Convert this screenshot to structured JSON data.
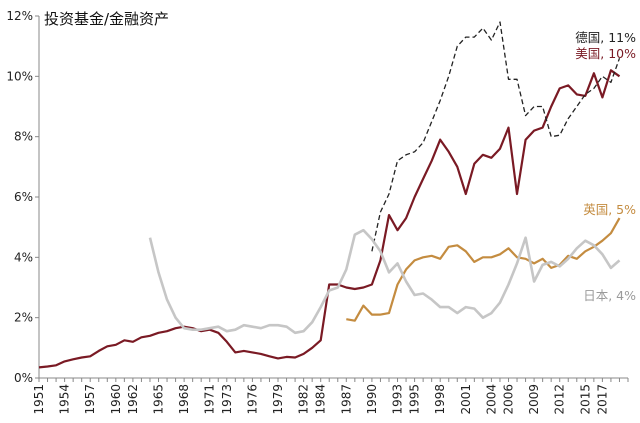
{
  "chart_data": {
    "type": "line",
    "title": "投资基金/金融资产",
    "xlabel": "",
    "ylabel": "",
    "xlim": [
      1951,
      2020
    ],
    "ylim": [
      0,
      12
    ],
    "y_ticks": [
      0,
      2,
      4,
      6,
      8,
      10,
      12
    ],
    "y_tick_labels": [
      "0%",
      "2%",
      "4%",
      "6%",
      "8%",
      "10%",
      "12%"
    ],
    "x_tick_labels": [
      "1951",
      "1954",
      "1957",
      "1960",
      "1962",
      "1965",
      "1968",
      "1971",
      "1973",
      "1976",
      "1979",
      "1982",
      "1984",
      "1987",
      "1990",
      "1993",
      "1995",
      "1998",
      "2001",
      "2004",
      "2006",
      "2009",
      "2012",
      "2015",
      "2017"
    ],
    "x_ticks": [
      1951,
      1954,
      1957,
      1960,
      1962,
      1965,
      1968,
      1971,
      1973,
      1976,
      1979,
      1982,
      1984,
      1987,
      1990,
      1993,
      1995,
      1998,
      2001,
      2004,
      2006,
      2009,
      2012,
      2015,
      2017
    ],
    "grid": false,
    "legend": "inline labels at line ends",
    "series": [
      {
        "name": "美国, 10%",
        "color": "#7a1a24",
        "style": "solid",
        "x": [
          1951,
          1952,
          1953,
          1954,
          1955,
          1956,
          1957,
          1958,
          1959,
          1960,
          1961,
          1962,
          1963,
          1964,
          1965,
          1966,
          1967,
          1968,
          1969,
          1970,
          1971,
          1972,
          1973,
          1974,
          1975,
          1976,
          1977,
          1978,
          1979,
          1980,
          1981,
          1982,
          1983,
          1984,
          1985,
          1986,
          1987,
          1988,
          1989,
          1990,
          1991,
          1992,
          1993,
          1994,
          1995,
          1996,
          1997,
          1998,
          1999,
          2000,
          2001,
          2002,
          2003,
          2004,
          2005,
          2006,
          2007,
          2008,
          2009,
          2010,
          2011,
          2012,
          2013,
          2014,
          2015,
          2016,
          2017,
          2018,
          2019
        ],
        "y": [
          0.35,
          0.38,
          0.42,
          0.55,
          0.62,
          0.68,
          0.72,
          0.9,
          1.05,
          1.1,
          1.25,
          1.2,
          1.35,
          1.4,
          1.5,
          1.55,
          1.65,
          1.7,
          1.65,
          1.55,
          1.6,
          1.5,
          1.2,
          0.85,
          0.9,
          0.85,
          0.8,
          0.72,
          0.65,
          0.7,
          0.68,
          0.8,
          1.0,
          1.25,
          3.1,
          3.1,
          3.0,
          2.95,
          3.0,
          3.1,
          3.9,
          5.4,
          4.9,
          5.3,
          6.0,
          6.6,
          7.2,
          7.9,
          7.5,
          7.0,
          6.1,
          7.1,
          7.4,
          7.3,
          7.6,
          8.3,
          6.1,
          7.9,
          8.2,
          8.3,
          9.0,
          9.6,
          9.7,
          9.4,
          9.35,
          10.1,
          9.3,
          10.2,
          10.0
        ]
      },
      {
        "name": "德国, 11%",
        "color": "#222222",
        "style": "dashed",
        "x": [
          1990,
          1991,
          1992,
          1993,
          1994,
          1995,
          1996,
          1997,
          1998,
          1999,
          2000,
          2001,
          2002,
          2003,
          2004,
          2005,
          2006,
          2007,
          2008,
          2009,
          2010,
          2011,
          2012,
          2013,
          2014,
          2015,
          2016,
          2017,
          2018,
          2019
        ],
        "y": [
          4.2,
          5.5,
          6.1,
          7.2,
          7.4,
          7.5,
          7.8,
          8.5,
          9.2,
          10.0,
          11.0,
          11.3,
          11.3,
          11.6,
          11.2,
          11.8,
          9.9,
          9.9,
          8.7,
          9.0,
          9.0,
          8.0,
          8.05,
          8.6,
          9.0,
          9.4,
          9.6,
          10.0,
          9.8,
          10.6
        ]
      },
      {
        "name": "英国, 5%",
        "color": "#c48c40",
        "style": "solid",
        "x": [
          1987,
          1988,
          1989,
          1990,
          1991,
          1992,
          1993,
          1994,
          1995,
          1996,
          1997,
          1998,
          1999,
          2000,
          2001,
          2002,
          2003,
          2004,
          2005,
          2006,
          2007,
          2008,
          2009,
          2010,
          2011,
          2012,
          2013,
          2014,
          2015,
          2016,
          2017,
          2018,
          2019
        ],
        "y": [
          1.95,
          1.9,
          2.4,
          2.1,
          2.1,
          2.15,
          3.1,
          3.6,
          3.9,
          4.0,
          4.05,
          3.95,
          4.35,
          4.4,
          4.2,
          3.85,
          4.0,
          4.0,
          4.1,
          4.3,
          4.0,
          3.95,
          3.8,
          3.95,
          3.65,
          3.75,
          4.05,
          3.95,
          4.2,
          4.35,
          4.55,
          4.8,
          5.3
        ]
      },
      {
        "name": "日本, 4%",
        "color": "#c6c6c6",
        "style": "solid",
        "x": [
          1964,
          1965,
          1966,
          1967,
          1968,
          1969,
          1970,
          1971,
          1972,
          1973,
          1974,
          1975,
          1976,
          1977,
          1978,
          1979,
          1980,
          1981,
          1982,
          1983,
          1984,
          1985,
          1986,
          1987,
          1988,
          1989,
          1990,
          1991,
          1992,
          1993,
          1994,
          1995,
          1996,
          1997,
          1998,
          1999,
          2000,
          2001,
          2002,
          2003,
          2004,
          2005,
          2006,
          2007,
          2008,
          2009,
          2010,
          2011,
          2012,
          2013,
          2014,
          2015,
          2016,
          2017,
          2018,
          2019
        ],
        "y": [
          4.65,
          3.5,
          2.6,
          2.0,
          1.65,
          1.6,
          1.6,
          1.65,
          1.7,
          1.55,
          1.6,
          1.75,
          1.7,
          1.65,
          1.75,
          1.75,
          1.7,
          1.5,
          1.55,
          1.85,
          2.35,
          2.9,
          3.0,
          3.6,
          4.75,
          4.9,
          4.6,
          4.2,
          3.5,
          3.8,
          3.2,
          2.75,
          2.8,
          2.6,
          2.35,
          2.35,
          2.15,
          2.35,
          2.3,
          2.0,
          2.15,
          2.5,
          3.1,
          3.8,
          4.65,
          3.2,
          3.75,
          3.85,
          3.7,
          3.95,
          4.3,
          4.55,
          4.4,
          4.1,
          3.65,
          3.9
        ]
      }
    ]
  }
}
